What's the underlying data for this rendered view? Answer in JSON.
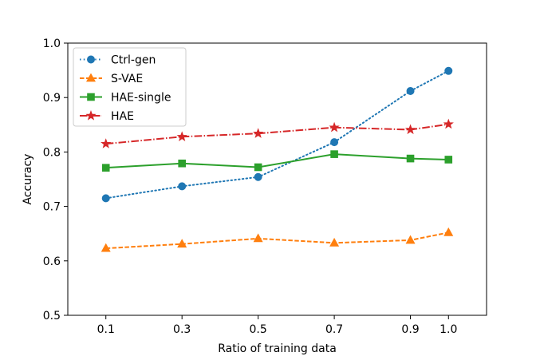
{
  "chart_data": {
    "type": "line",
    "title": "",
    "xlabel": "Ratio of training data",
    "ylabel": "Accuracy",
    "xlim": [
      0.0,
      1.1
    ],
    "ylim": [
      0.5,
      1.0
    ],
    "xticks": [
      0.1,
      0.3,
      0.5,
      0.7,
      0.9,
      1.0
    ],
    "xtick_labels": [
      "0.1",
      "0.3",
      "0.5",
      "0.7",
      "0.9",
      "1.0"
    ],
    "yticks": [
      0.5,
      0.6,
      0.7,
      0.8,
      0.9,
      1.0
    ],
    "ytick_labels": [
      "0.5",
      "0.6",
      "0.7",
      "0.8",
      "0.9",
      "1.0"
    ],
    "grid": false,
    "legend_position": "top-left",
    "x": [
      0.1,
      0.3,
      0.5,
      0.7,
      0.9,
      1.0
    ],
    "series": [
      {
        "name": "Ctrl-gen",
        "values": [
          0.715,
          0.737,
          0.754,
          0.818,
          0.912,
          0.949
        ],
        "color": "#1f77b4",
        "marker": "circle",
        "linestyle": "dotted"
      },
      {
        "name": "S-VAE",
        "values": [
          0.623,
          0.631,
          0.641,
          0.633,
          0.638,
          0.652
        ],
        "color": "#ff7f0e",
        "marker": "triangle",
        "linestyle": "dashed"
      },
      {
        "name": "HAE-single",
        "values": [
          0.771,
          0.779,
          0.772,
          0.796,
          0.788,
          0.786
        ],
        "color": "#2ca02c",
        "marker": "square",
        "linestyle": "solid"
      },
      {
        "name": "HAE",
        "values": [
          0.815,
          0.828,
          0.834,
          0.845,
          0.841,
          0.851
        ],
        "color": "#d62728",
        "marker": "star",
        "linestyle": "dashdot"
      }
    ]
  }
}
